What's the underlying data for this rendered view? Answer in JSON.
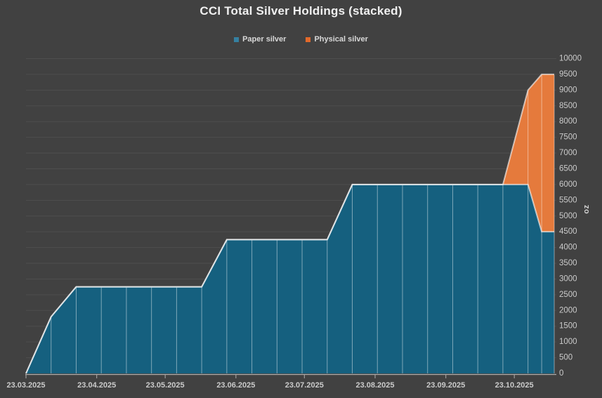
{
  "title": "CCI Total Silver Holdings (stacked)",
  "legend": {
    "items": [
      {
        "label": "Paper silver",
        "color": "#3580A1"
      },
      {
        "label": "Physical silver",
        "color": "#E2692B"
      }
    ]
  },
  "y_axis": {
    "label": "oz",
    "min": 0,
    "max": 10000,
    "step": 500,
    "tick_labels": [
      "0",
      "500",
      "1000",
      "1500",
      "2000",
      "2500",
      "3000",
      "3500",
      "4000",
      "4500",
      "5000",
      "5500",
      "6000",
      "6500",
      "7000",
      "7500",
      "8000",
      "8500",
      "9000",
      "9500",
      "10000"
    ]
  },
  "x_axis": {
    "ticks": [
      {
        "label": "23.03.2025",
        "day": 0
      },
      {
        "label": "23.04.2025",
        "day": 31
      },
      {
        "label": "23.05.2025",
        "day": 61
      },
      {
        "label": "23.06.2025",
        "day": 92
      },
      {
        "label": "23.07.2025",
        "day": 122
      },
      {
        "label": "23.08.2025",
        "day": 153
      },
      {
        "label": "23.09.2025",
        "day": 184
      },
      {
        "label": "23.10.2025",
        "day": 214
      }
    ]
  },
  "chart_data": {
    "type": "area",
    "stacked": true,
    "title": "CCI Total Silver Holdings (stacked)",
    "ylabel": "oz",
    "ylim": [
      0,
      10000
    ],
    "y_gridline_step": 500,
    "grid": true,
    "legend_position": "top",
    "x_range_days": [
      0,
      231.5
    ],
    "points_day_offsets": [
      0,
      11,
      22,
      33,
      44,
      55,
      66,
      77,
      88,
      99,
      110,
      121,
      132,
      143,
      154,
      165,
      176,
      187,
      198,
      209,
      220,
      226,
      231.5
    ],
    "points_dates_estimated": [
      "23.03.2025",
      "03.04.2025",
      "14.04.2025",
      "25.04.2025",
      "06.05.2025",
      "17.05.2025",
      "28.05.2025",
      "08.06.2025",
      "19.06.2025",
      "30.06.2025",
      "11.07.2025",
      "22.07.2025",
      "02.08.2025",
      "13.08.2025",
      "24.08.2025",
      "04.09.2025",
      "15.09.2025",
      "26.09.2025",
      "07.10.2025",
      "18.10.2025",
      "29.10.2025",
      "04.11.2025",
      "09.11.2025"
    ],
    "series": [
      {
        "name": "Paper silver",
        "fill": "#15607F",
        "values": [
          0,
          1800,
          2750,
          2750,
          2750,
          2750,
          2750,
          2750,
          4250,
          4250,
          4250,
          4250,
          4250,
          6000,
          6000,
          6000,
          6000,
          6000,
          6000,
          6000,
          6000,
          4500,
          4500
        ]
      },
      {
        "name": "Physical silver",
        "fill": "#E57A3C",
        "values": [
          0,
          0,
          0,
          0,
          0,
          0,
          0,
          0,
          0,
          0,
          0,
          0,
          0,
          0,
          0,
          0,
          0,
          0,
          0,
          0,
          3000,
          5000,
          5000
        ]
      }
    ]
  },
  "colors": {
    "background": "#414141",
    "gridline": "#4E4E4E",
    "axis": "#ADADAD",
    "tick_text": "#CBCBCB",
    "title_text": "#F0F0F0",
    "edge_stroke": "rgba(255,255,255,0.6)",
    "drop_line": "rgba(255,255,255,0.45)"
  }
}
